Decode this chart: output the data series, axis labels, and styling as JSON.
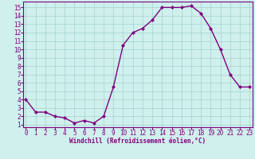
{
  "x": [
    0,
    1,
    2,
    3,
    4,
    5,
    6,
    7,
    8,
    9,
    10,
    11,
    12,
    13,
    14,
    15,
    16,
    17,
    18,
    19,
    20,
    21,
    22,
    23
  ],
  "y": [
    4,
    2.5,
    2.5,
    2,
    1.8,
    1.2,
    1.5,
    1.2,
    2,
    5.5,
    10.5,
    12,
    12.5,
    13.5,
    15,
    15,
    15,
    15.2,
    14.3,
    12.5,
    10,
    7,
    5.5,
    5.5
  ],
  "line_color": "#800080",
  "marker": "D",
  "marker_size": 2.0,
  "bg_color": "#cff0ec",
  "grid_color": "#99cccc",
  "xlabel": "Windchill (Refroidissement éolien,°C)",
  "xlabel_fontsize": 5.5,
  "ylabel_ticks": [
    1,
    2,
    3,
    4,
    5,
    6,
    7,
    8,
    9,
    10,
    11,
    12,
    13,
    14,
    15
  ],
  "xticks": [
    0,
    1,
    2,
    3,
    4,
    5,
    6,
    7,
    8,
    9,
    10,
    11,
    12,
    13,
    14,
    15,
    16,
    17,
    18,
    19,
    20,
    21,
    22,
    23
  ],
  "xlim": [
    -0.3,
    23.3
  ],
  "ylim": [
    0.7,
    15.7
  ],
  "tick_fontsize": 5.5,
  "line_width": 1.0,
  "spine_color": "#800080",
  "axis_color": "#800080"
}
